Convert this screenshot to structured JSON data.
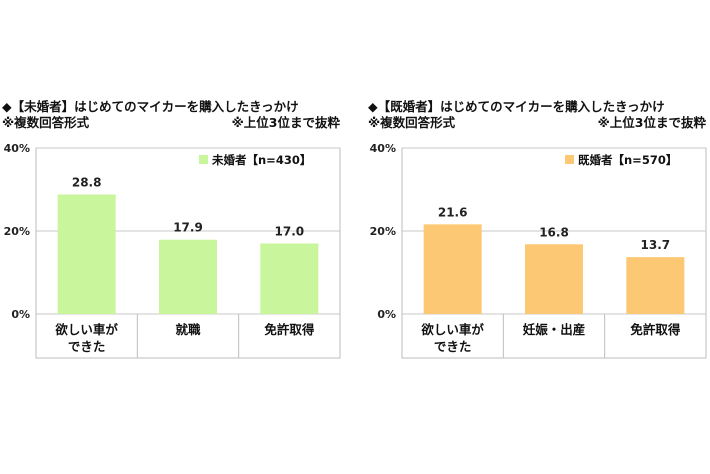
{
  "charts": [
    {
      "title": "◆【未婚者】はじめてのマイカーを購入したきっかけ",
      "note_left": "※複数回答形式",
      "note_right": "※上位3位まで抜粋",
      "legend": "未婚者【n=430】",
      "color": "#c9f59c",
      "border": "#7fae4f"
    },
    {
      "title": "◆【既婚者】はじめてのマイカーを購入したきっかけ",
      "note_left": "※複数回答形式",
      "note_right": "※上位3位まで抜粋",
      "legend": "既婚者【n=570】",
      "color": "#fdc873",
      "border": "#c99236"
    }
  ],
  "chart_data": [
    {
      "type": "bar",
      "categories": [
        [
          "欲しい車が",
          "できた"
        ],
        [
          "就職"
        ],
        [
          "免許取得"
        ]
      ],
      "series": [
        {
          "name": "未婚者【n=430】",
          "values": [
            28.8,
            17.9,
            17.0
          ]
        }
      ],
      "ylim": [
        0,
        40
      ],
      "yticks": [
        "0%",
        "20%",
        "40%"
      ],
      "grid": true,
      "legend_position": "top-right"
    },
    {
      "type": "bar",
      "categories": [
        [
          "欲しい車が",
          "できた"
        ],
        [
          "妊娠・出産"
        ],
        [
          "免許取得"
        ]
      ],
      "series": [
        {
          "name": "既婚者【n=570】",
          "values": [
            21.6,
            16.8,
            13.7
          ]
        }
      ],
      "ylim": [
        0,
        40
      ],
      "yticks": [
        "0%",
        "20%",
        "40%"
      ],
      "grid": true,
      "legend_position": "top-right"
    }
  ]
}
